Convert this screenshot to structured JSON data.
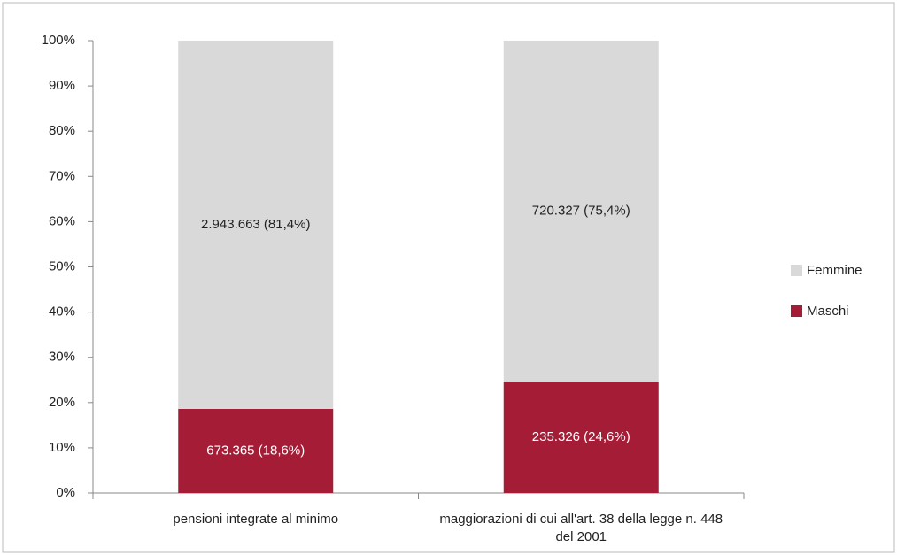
{
  "chart_data": {
    "type": "stacked_bar",
    "categories": [
      "pensioni integrate al minimo",
      "maggiorazioni di cui all'art. 38 della legge n. 448 del 2001"
    ],
    "series": [
      {
        "name": "Maschi",
        "color": "#a51c36",
        "values": [
          18.6,
          24.6
        ],
        "value_labels": [
          "673.365 (18,6%)",
          "235.326 (24,6%)"
        ]
      },
      {
        "name": "Femmine",
        "color": "#d9d9d9",
        "values": [
          81.4,
          75.4
        ],
        "value_labels": [
          "2.943.663 (81,4%)",
          "720.327 (75,4%)"
        ]
      }
    ],
    "ylim": [
      0,
      100
    ],
    "yticks": [
      {
        "value": 0,
        "label": "0%"
      },
      {
        "value": 10,
        "label": "10%"
      },
      {
        "value": 20,
        "label": "20%"
      },
      {
        "value": 30,
        "label": "30%"
      },
      {
        "value": 40,
        "label": "40%"
      },
      {
        "value": 50,
        "label": "50%"
      },
      {
        "value": 60,
        "label": "60%"
      },
      {
        "value": 70,
        "label": "70%"
      },
      {
        "value": 80,
        "label": "80%"
      },
      {
        "value": 90,
        "label": "90%"
      },
      {
        "value": 100,
        "label": "100%"
      }
    ],
    "legend": "right"
  }
}
